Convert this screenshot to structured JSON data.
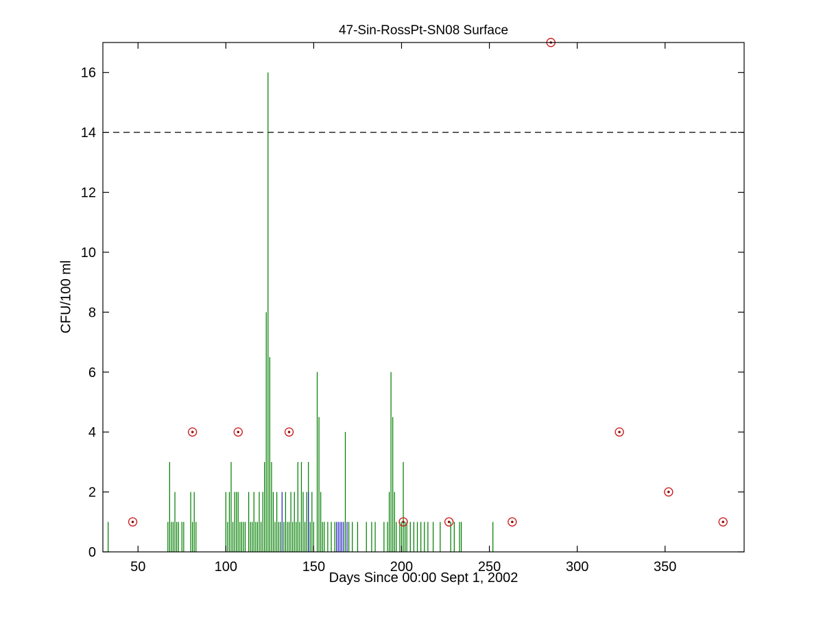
{
  "chart_data": {
    "type": "bar",
    "subtype": "stem-plot",
    "title": "47-Sin-RossPt-SN08 Surface",
    "xlabel": "Days Since 00:00 Sept 1, 2002",
    "ylabel": "CFU/100 ml",
    "xlim": [
      30,
      395
    ],
    "ylim": [
      0,
      17
    ],
    "xticks": [
      50,
      100,
      150,
      200,
      250,
      300,
      350
    ],
    "yticks": [
      0,
      2,
      4,
      6,
      8,
      10,
      12,
      14,
      16
    ],
    "grid": false,
    "legend": "none",
    "threshold_line": {
      "y": 14,
      "style": "dashed",
      "color": "#000000"
    },
    "colors": {
      "green_series": "#007f00",
      "blue_series": "#2222bb",
      "red_markers": "#cc2222",
      "red_marker_dot": "#881111",
      "axes": "#000000"
    },
    "series": [
      {
        "name": "samples-green",
        "type": "stems",
        "color": "#007f00",
        "points": [
          [
            33,
            1
          ],
          [
            67,
            1
          ],
          [
            68,
            3
          ],
          [
            69,
            1
          ],
          [
            70,
            1
          ],
          [
            71,
            2
          ],
          [
            72,
            1
          ],
          [
            73,
            1
          ],
          [
            75,
            1
          ],
          [
            76,
            1
          ],
          [
            80,
            2
          ],
          [
            81,
            1
          ],
          [
            82,
            2
          ],
          [
            83,
            1
          ],
          [
            100,
            2
          ],
          [
            101,
            1
          ],
          [
            102,
            2
          ],
          [
            103,
            3
          ],
          [
            104,
            1
          ],
          [
            105,
            2
          ],
          [
            106,
            2
          ],
          [
            107,
            2
          ],
          [
            108,
            1
          ],
          [
            109,
            1
          ],
          [
            110,
            1
          ],
          [
            111,
            1
          ],
          [
            113,
            2
          ],
          [
            114,
            1
          ],
          [
            115,
            1
          ],
          [
            116,
            2
          ],
          [
            117,
            1
          ],
          [
            118,
            1
          ],
          [
            119,
            2
          ],
          [
            120,
            1
          ],
          [
            121,
            2
          ],
          [
            122,
            3
          ],
          [
            123,
            8
          ],
          [
            124,
            16
          ],
          [
            125,
            6.5
          ],
          [
            126,
            3
          ],
          [
            127,
            2
          ],
          [
            128,
            1
          ],
          [
            129,
            2
          ],
          [
            130,
            1
          ],
          [
            131,
            1
          ],
          [
            133,
            1
          ],
          [
            134,
            2
          ],
          [
            135,
            1
          ],
          [
            136,
            1
          ],
          [
            137,
            2
          ],
          [
            138,
            1
          ],
          [
            139,
            2
          ],
          [
            140,
            1
          ],
          [
            141,
            3
          ],
          [
            142,
            1
          ],
          [
            143,
            3
          ],
          [
            144,
            2
          ],
          [
            145,
            1
          ],
          [
            146,
            2
          ],
          [
            147,
            3
          ],
          [
            148,
            1
          ],
          [
            149,
            2
          ],
          [
            150,
            1
          ],
          [
            152,
            6
          ],
          [
            153,
            4.5
          ],
          [
            154,
            2
          ],
          [
            155,
            1
          ],
          [
            156,
            1
          ],
          [
            158,
            1
          ],
          [
            160,
            1
          ],
          [
            162,
            1
          ],
          [
            168,
            4
          ],
          [
            170,
            1
          ],
          [
            172,
            1
          ],
          [
            175,
            1
          ],
          [
            180,
            1
          ],
          [
            183,
            1
          ],
          [
            185,
            1
          ],
          [
            190,
            1
          ],
          [
            192,
            1
          ],
          [
            193,
            2
          ],
          [
            194,
            6
          ],
          [
            195,
            4.5
          ],
          [
            196,
            2
          ],
          [
            197,
            1
          ],
          [
            199,
            1
          ],
          [
            200,
            1
          ],
          [
            201,
            3
          ],
          [
            202,
            1
          ],
          [
            203,
            1
          ],
          [
            205,
            1
          ],
          [
            207,
            1
          ],
          [
            209,
            1
          ],
          [
            211,
            1
          ],
          [
            213,
            1
          ],
          [
            215,
            1
          ],
          [
            218,
            1
          ],
          [
            222,
            1
          ],
          [
            228,
            1
          ],
          [
            230,
            1
          ],
          [
            233,
            1
          ],
          [
            234,
            1
          ],
          [
            252,
            1
          ]
        ]
      },
      {
        "name": "samples-blue",
        "type": "stems",
        "color": "#2222bb",
        "points": [
          [
            132,
            2
          ],
          [
            147,
            2
          ],
          [
            163,
            1
          ],
          [
            164,
            1
          ],
          [
            165,
            1
          ],
          [
            166,
            1
          ],
          [
            167,
            1
          ],
          [
            169,
            1
          ]
        ]
      },
      {
        "name": "flagged-samples",
        "type": "markers",
        "marker": "circled-dot",
        "color": "#cc2222",
        "dot_color": "#881111",
        "points": [
          [
            47,
            1
          ],
          [
            81,
            4
          ],
          [
            107,
            4
          ],
          [
            136,
            4
          ],
          [
            201,
            1
          ],
          [
            227,
            1
          ],
          [
            263,
            1
          ],
          [
            285,
            17
          ],
          [
            324,
            4
          ],
          [
            352,
            2
          ],
          [
            383,
            1
          ]
        ]
      }
    ]
  }
}
